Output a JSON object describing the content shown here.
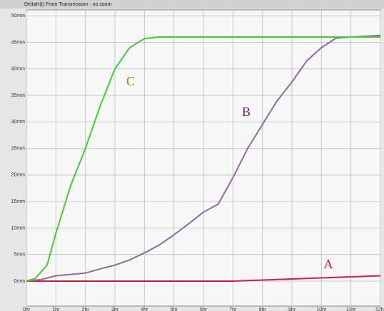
{
  "chart_data": {
    "type": "line",
    "title": "DeltaH(t) From Transmission - no zoom",
    "xlim": [
      0,
      12
    ],
    "ylim": [
      -4.7,
      51.1
    ],
    "xticks": [
      {
        "value": 0,
        "label": "0hr"
      },
      {
        "value": 1,
        "label": "1hr"
      },
      {
        "value": 2,
        "label": "2hr"
      },
      {
        "value": 3,
        "label": "3hr"
      },
      {
        "value": 4,
        "label": "4hr"
      },
      {
        "value": 5,
        "label": "5hr"
      },
      {
        "value": 6,
        "label": "6hr"
      },
      {
        "value": 7,
        "label": "7hr"
      },
      {
        "value": 8,
        "label": "8hr"
      },
      {
        "value": 9,
        "label": "9hr"
      },
      {
        "value": 10,
        "label": "10hr"
      },
      {
        "value": 11,
        "label": "11hr"
      },
      {
        "value": 12,
        "label": "12hr"
      }
    ],
    "yticks": [
      {
        "value": 0,
        "label": "0mm"
      },
      {
        "value": 5,
        "label": "5mm"
      },
      {
        "value": 10,
        "label": "10mm"
      },
      {
        "value": 15,
        "label": "15mm"
      },
      {
        "value": 20,
        "label": "20mm"
      },
      {
        "value": 25,
        "label": "25mm"
      },
      {
        "value": 30,
        "label": "30mm"
      },
      {
        "value": 35,
        "label": "35mm"
      },
      {
        "value": 40,
        "label": "40mm"
      },
      {
        "value": 45,
        "label": "45mm"
      },
      {
        "value": 50,
        "label": "50mm"
      }
    ],
    "grid": true,
    "series": [
      {
        "name": "A",
        "color": "#d81b3c",
        "x": [
          0,
          7,
          9,
          12
        ],
        "values": [
          0,
          0,
          0.4,
          1
        ]
      },
      {
        "name": "B",
        "color": "#8e6a9e",
        "x": [
          0,
          0.5,
          1,
          2,
          2.5,
          3,
          3.5,
          4,
          4.5,
          5,
          5.5,
          6,
          6.5,
          7,
          7.5,
          8,
          8.5,
          9,
          9.5,
          10,
          10.5,
          11,
          12
        ],
        "values": [
          0,
          0.3,
          1,
          1.5,
          2.3,
          3,
          4,
          5.3,
          6.8,
          8.7,
          10.8,
          13,
          14.5,
          19.5,
          25,
          29.5,
          34,
          37.5,
          41.5,
          44,
          45.8,
          46,
          46.3
        ]
      },
      {
        "name": "C",
        "color": "#44cc33",
        "x": [
          0,
          0.3,
          0.7,
          1,
          1.5,
          2,
          2.5,
          3,
          3.5,
          4,
          4.5,
          12
        ],
        "values": [
          0,
          0.5,
          3,
          9,
          18,
          25,
          33,
          40,
          44,
          45.7,
          46,
          46
        ]
      }
    ],
    "annotations": [
      {
        "text": "A",
        "color": "#e0102a"
      },
      {
        "text": "B",
        "color": "#7a1f8a"
      },
      {
        "text": "C",
        "color": "#8a8a10"
      }
    ]
  }
}
